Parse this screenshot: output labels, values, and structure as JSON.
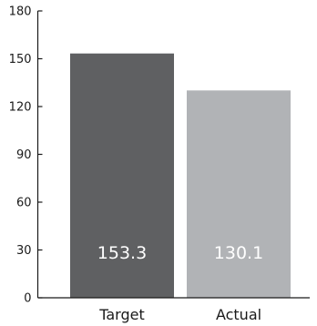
{
  "chart_data": {
    "type": "bar",
    "categories": [
      "Target",
      "Actual"
    ],
    "values": [
      153.3,
      130.1
    ],
    "data_labels": [
      "153.3",
      "130.1"
    ],
    "colors": [
      "#5f6062",
      "#b1b3b6"
    ],
    "title": "",
    "xlabel": "",
    "ylabel": "",
    "ylim": [
      0,
      180
    ],
    "yticks": [
      0,
      30,
      60,
      90,
      120,
      150,
      180
    ],
    "grid": false,
    "legend": "none"
  }
}
